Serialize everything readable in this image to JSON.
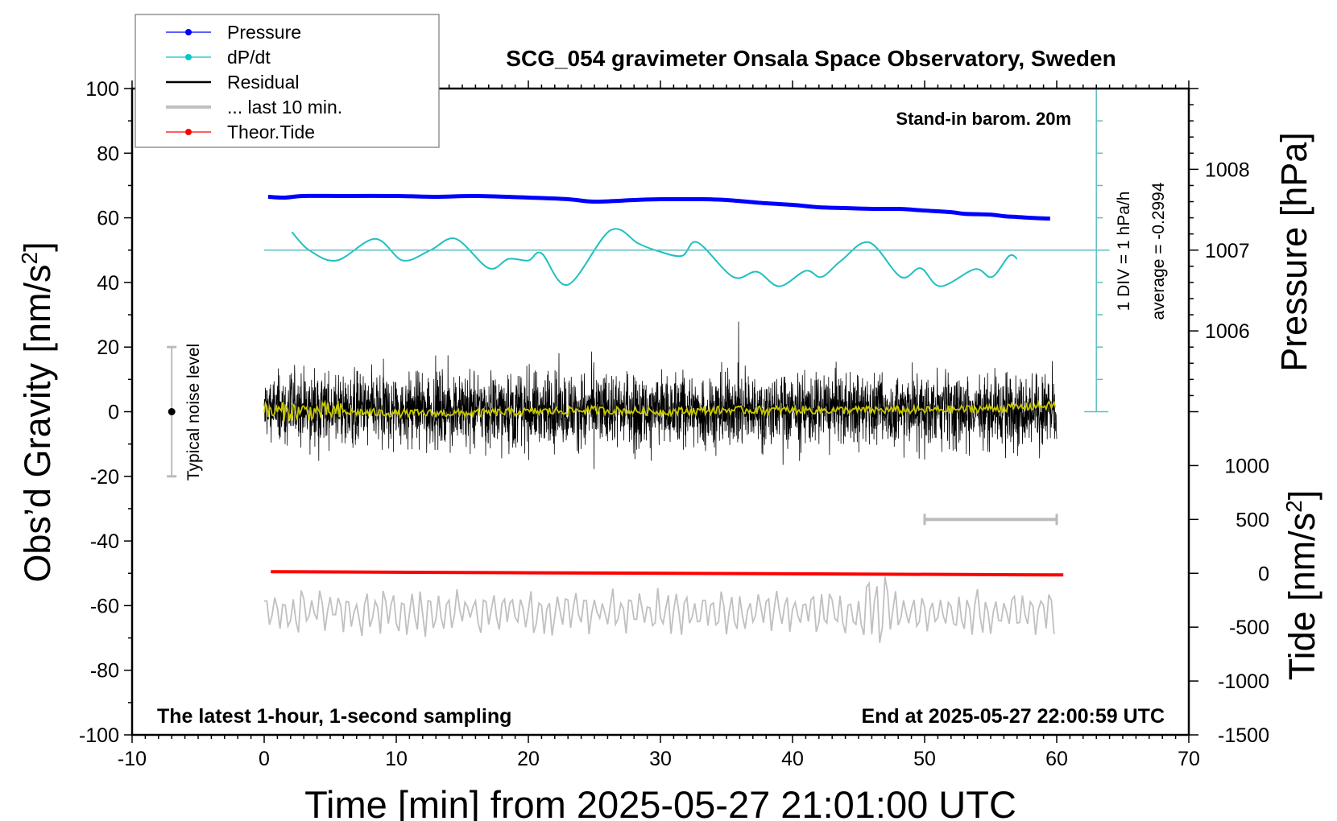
{
  "chart_data": {
    "type": "line",
    "title": "SCG_054 gravimeter Onsala Space Observatory, Sweden",
    "subtitle_right": "Stand-in barom. 20m",
    "annotation_bottom_left": "The latest 1-hour, 1-second sampling",
    "annotation_bottom_right": "End at 2025-05-27 22:00:59 UTC",
    "xlabel": "Time [min] from 2025-05-27 21:01:00 UTC",
    "ylabel": "Obs'd Gravity [nm/s²]",
    "ylabel_main": "Obs’d Gravity [nm/s",
    "ylabel_sup": "2",
    "ylabel_end": "]",
    "y2label": "Pressure [hPa]",
    "y3label_main": "Tide [nm/s",
    "y3label_sup": "2",
    "y3label_end": "]",
    "xlim": [
      -10,
      70
    ],
    "ylim": [
      -100,
      100
    ],
    "pressure_lim": [
      1001,
      1009
    ],
    "tide_lim": [
      -1500,
      4500
    ],
    "x_ticks": [
      -10,
      0,
      10,
      20,
      30,
      40,
      50,
      60,
      70
    ],
    "y_ticks": [
      -100,
      -80,
      -60,
      -40,
      -20,
      0,
      20,
      40,
      60,
      80,
      100
    ],
    "pressure_ticks": [
      1006,
      1007,
      1008
    ],
    "tide_ticks": [
      -1500,
      -1000,
      -500,
      0,
      500,
      1000
    ],
    "dpdt_scale_label": "1 DIV = 1 hPa/h",
    "dpdt_average_label": "average = -0.2994",
    "noise_label": "Typical noise level",
    "noise_level": {
      "x": -7,
      "center": 0,
      "range": [
        -20,
        20
      ]
    },
    "last10_bar": [
      50,
      60
    ],
    "legend": {
      "position": "top-left",
      "entries": [
        {
          "label": "Pressure",
          "color": "#0000ff",
          "marker": true
        },
        {
          "label": "dP/dt",
          "color": "#00c8c8",
          "marker": true
        },
        {
          "label": "Residual",
          "color": "#000000",
          "marker": false
        },
        {
          "label": "... last 10 min.",
          "color": "#c0c0c0",
          "marker": false
        },
        {
          "label": "Theor.Tide",
          "color": "#ff0000",
          "marker": true
        }
      ]
    },
    "colors": {
      "pressure": "#0000ff",
      "dpdt": "#20c0c0",
      "dpdt_axis": "#5fbfbf",
      "residual": "#000000",
      "smooth": "#c8c800",
      "last10": "#c0c0c0",
      "tide": "#ff0000"
    },
    "series": [
      {
        "name": "Pressure",
        "unit": "hPa",
        "x": [
          0.3,
          1.5,
          3,
          6,
          10,
          13,
          16,
          20,
          23,
          25,
          28,
          30,
          33,
          35,
          38,
          40,
          42,
          44,
          46,
          48,
          50,
          52,
          53,
          55,
          56,
          57,
          58,
          59.5
        ],
        "y": [
          1007.66,
          1007.65,
          1007.67,
          1007.67,
          1007.67,
          1007.66,
          1007.67,
          1007.65,
          1007.63,
          1007.6,
          1007.62,
          1007.63,
          1007.63,
          1007.62,
          1007.58,
          1007.56,
          1007.53,
          1007.52,
          1007.51,
          1007.51,
          1007.49,
          1007.47,
          1007.45,
          1007.44,
          1007.42,
          1007.41,
          1007.4,
          1007.39
        ]
      },
      {
        "name": "dP/dt",
        "unit": "hPa/h (deviation from average)",
        "x": [
          2.1,
          3.4,
          5.5,
          8.4,
          10.5,
          12.6,
          14.5,
          17,
          18.5,
          20,
          21,
          23,
          26.2,
          28.3,
          29.6,
          31.6,
          32.8,
          35.5,
          37.3,
          39,
          41,
          42.2,
          43.7,
          45.8,
          48.2,
          49.7,
          51.2,
          53.8,
          55.1,
          56.4,
          57
        ],
        "y": [
          0.56,
          0.0,
          -0.32,
          0.35,
          -0.32,
          0.0,
          0.35,
          -0.56,
          -0.27,
          -0.32,
          -0.1,
          -1.07,
          0.61,
          0.21,
          0.0,
          -0.18,
          0.24,
          -0.83,
          -0.67,
          -1.12,
          -0.64,
          -0.83,
          -0.32,
          0.24,
          -0.83,
          -0.56,
          -1.12,
          -0.59,
          -0.83,
          -0.18,
          -0.27
        ]
      },
      {
        "name": "Residual",
        "unit": "nm/s²",
        "x_range": [
          0,
          60
        ],
        "mean": 0.5,
        "amplitude": 10
      },
      {
        "name": "Residual smoothed",
        "unit": "nm/s²",
        "x": [
          0,
          5,
          10,
          15,
          20,
          25,
          30,
          35,
          40,
          45,
          50,
          55,
          60
        ],
        "y": [
          0,
          0,
          -0.5,
          -0.5,
          0,
          0.5,
          0,
          0.5,
          0.5,
          0.5,
          0.5,
          1,
          2
        ]
      },
      {
        "name": "... last 10 min.",
        "unit": "nm/s² (offset)",
        "x_range": [
          0,
          60
        ],
        "offset": -62,
        "amplitude": 7
      },
      {
        "name": "Theor.Tide",
        "unit": "nm/s²",
        "x": [
          0.5,
          20,
          40,
          60.5
        ],
        "y": [
          15,
          5,
          -5,
          -15
        ]
      }
    ]
  }
}
